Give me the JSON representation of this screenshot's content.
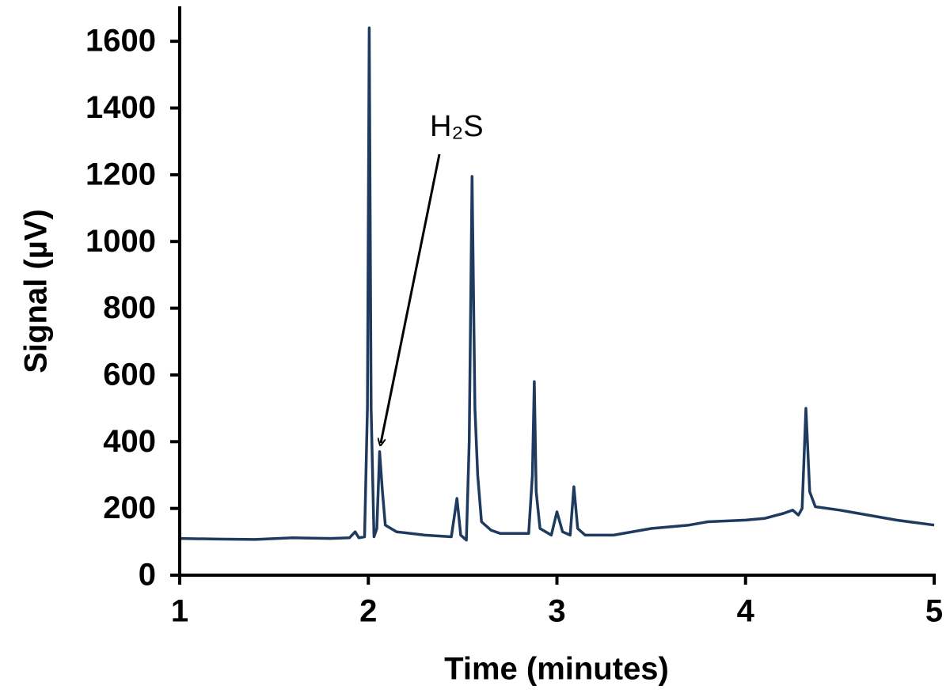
{
  "chart_data": {
    "type": "line",
    "x_label": "Time (minutes)",
    "y_label": "Signal (µV)",
    "annotation": "H₂S",
    "xlim": [
      1,
      5
    ],
    "ylim": [
      0,
      1700
    ],
    "xticks": [
      1,
      2,
      3,
      4,
      5
    ],
    "yticks": [
      0,
      200,
      400,
      600,
      800,
      1000,
      1200,
      1400,
      1600
    ],
    "series": [
      {
        "color": "#1f3a5f",
        "x": [
          1.0,
          1.2,
          1.4,
          1.6,
          1.8,
          1.9,
          1.93,
          1.95,
          1.98,
          1.995,
          2.005,
          2.015,
          2.03,
          2.045,
          2.06,
          2.075,
          2.09,
          2.15,
          2.3,
          2.44,
          2.47,
          2.49,
          2.52,
          2.535,
          2.55,
          2.565,
          2.58,
          2.6,
          2.65,
          2.7,
          2.85,
          2.87,
          2.88,
          2.89,
          2.91,
          2.97,
          3.0,
          3.03,
          3.07,
          3.09,
          3.11,
          3.15,
          3.3,
          3.5,
          3.7,
          3.8,
          4.0,
          4.1,
          4.2,
          4.25,
          4.28,
          4.3,
          4.32,
          4.34,
          4.37,
          4.5,
          4.6,
          4.8,
          5.0
        ],
        "values": [
          110,
          108,
          107,
          112,
          110,
          112,
          130,
          112,
          115,
          500,
          1640,
          500,
          115,
          140,
          370,
          250,
          150,
          130,
          120,
          115,
          230,
          120,
          105,
          400,
          1195,
          500,
          300,
          160,
          135,
          125,
          125,
          300,
          580,
          250,
          140,
          120,
          190,
          130,
          120,
          265,
          140,
          120,
          120,
          140,
          150,
          160,
          165,
          170,
          185,
          195,
          180,
          200,
          500,
          250,
          205,
          195,
          185,
          165,
          150
        ]
      }
    ]
  }
}
